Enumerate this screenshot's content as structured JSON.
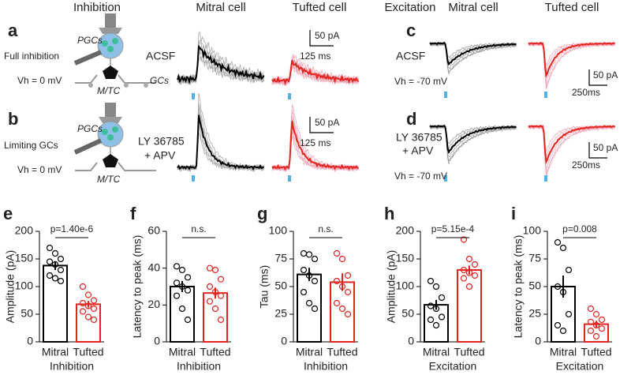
{
  "figure": {
    "headers": [
      "Inhibition",
      "Mitral cell",
      "Tufted cell",
      "Excitation",
      "Mitral cell",
      "Tufted cell"
    ],
    "panels": [
      "a",
      "b",
      "c",
      "d"
    ],
    "row_a": {
      "condition": "Full inhibition",
      "pgc": "PGCs",
      "gc": "GCs",
      "mtc": "M/TC",
      "vh": "Vh = 0 mV",
      "drug": "ACSF",
      "scale_y": "50 pA",
      "scale_x": "125 ms"
    },
    "row_b": {
      "condition": "Limiting GCs",
      "pgc": "PGCs",
      "mtc": "M/TC",
      "vh": "Vh = 0 mV",
      "drug_1": "LY 36785",
      "drug_2": "+ APV",
      "scale_y": "50 pA",
      "scale_x": "125 ms"
    },
    "row_c": {
      "drug": "ACSF",
      "vh": "Vh = -70 mV",
      "scale_y": "50 pA",
      "scale_x": "250ms"
    },
    "row_d": {
      "drug_1": "LY 36785",
      "drug_2": "+ APV",
      "vh": "Vh = -70 mV",
      "scale_y": "50 pA",
      "scale_x": "250ms"
    }
  },
  "chart_data": [
    {
      "type": "bar",
      "panel": "e",
      "y_label": "Amplitude (pA)",
      "x_label": "Inhibition",
      "annotation": "p=1.40e-6",
      "categories": [
        "Mitral",
        "Tufted"
      ],
      "values": [
        138,
        68
      ],
      "errors": [
        8,
        6
      ],
      "colors": [
        "#000000",
        "#e3241f"
      ],
      "points": [
        [
          170,
          160,
          150,
          145,
          140,
          130,
          120,
          115,
          110
        ],
        [
          100,
          85,
          75,
          70,
          65,
          60,
          55,
          45,
          40
        ]
      ],
      "ylim": [
        0,
        200
      ],
      "yticks": [
        0,
        50,
        100,
        150,
        200
      ]
    },
    {
      "type": "bar",
      "panel": "f",
      "y_label": "Latency to peak (ms)",
      "x_label": "Inhibition",
      "annotation": "n.s.",
      "categories": [
        "Mitral",
        "Tufted"
      ],
      "values": [
        30,
        26.5
      ],
      "errors": [
        3,
        3
      ],
      "colors": [
        "#000000",
        "#e3241f"
      ],
      "points": [
        [
          41,
          39,
          35,
          32,
          30,
          28,
          25,
          18,
          12
        ],
        [
          40,
          39,
          34,
          30,
          27,
          25,
          22,
          18,
          12
        ]
      ],
      "ylim": [
        0,
        60
      ],
      "yticks": [
        0,
        20,
        40,
        60
      ]
    },
    {
      "type": "bar",
      "panel": "g",
      "y_label": "Tau (ms)",
      "x_label": "Inhibition",
      "annotation": "n.s.",
      "categories": [
        "Mitral",
        "Tufted"
      ],
      "values": [
        61,
        54
      ],
      "errors": [
        6,
        8
      ],
      "colors": [
        "#000000",
        "#e3241f"
      ],
      "points": [
        [
          80,
          79,
          75,
          65,
          60,
          55,
          45,
          35,
          30
        ],
        [
          80,
          75,
          60,
          55,
          50,
          45,
          35,
          30,
          25
        ]
      ],
      "ylim": [
        0,
        100
      ],
      "yticks": [
        0,
        25,
        50,
        75,
        100
      ]
    },
    {
      "type": "bar",
      "panel": "h",
      "y_label": "Amplitude (pA)",
      "x_label": "Excitation",
      "annotation": "p=5.15e-4",
      "categories": [
        "Mitral",
        "Tufted"
      ],
      "values": [
        67,
        130
      ],
      "errors": [
        9,
        8
      ],
      "colors": [
        "#000000",
        "#e3241f"
      ],
      "points": [
        [
          110,
          100,
          80,
          65,
          60,
          45,
          40,
          30
        ],
        [
          185,
          150,
          140,
          130,
          125,
          120,
          115,
          100
        ]
      ],
      "ylim": [
        0,
        200
      ],
      "yticks": [
        0,
        50,
        100,
        150,
        200
      ]
    },
    {
      "type": "bar",
      "panel": "i",
      "y_label": "Latency to peak (ms)",
      "x_label": "Excitation",
      "annotation": "p=0.008",
      "categories": [
        "Mitral",
        "Tufted"
      ],
      "values": [
        50,
        16
      ],
      "errors": [
        10,
        3
      ],
      "colors": [
        "#000000",
        "#e3241f"
      ],
      "points": [
        [
          90,
          85,
          65,
          50,
          45,
          25,
          15,
          10
        ],
        [
          30,
          25,
          20,
          18,
          15,
          12,
          10,
          5
        ]
      ],
      "ylim": [
        0,
        100
      ],
      "yticks": [
        0,
        25,
        50,
        75,
        100
      ]
    }
  ]
}
